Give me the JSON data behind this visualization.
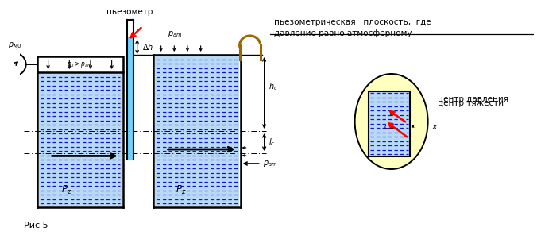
{
  "title": "Рис 5",
  "text_piezometer": "пьезометр",
  "text_piezometric_plane": "пьезометрическая   плоскость,  где",
  "text_pressure_equal": "давление равно атмосферному",
  "text_center_gravity": "центр тяжести",
  "text_center_pressure": "центр давления",
  "text_p_m0": "$p_{м0}$",
  "text_p0_patm": "$p_0{>}p_{аm}$",
  "text_delta_h": "$\\Delta h$",
  "text_p_atm_top": "$p_{аm}$",
  "text_h_c": "$h_c$",
  "text_lc": "$l_c$",
  "text_p_z_left": "$P_z$",
  "text_p_z_right": "$P_z$",
  "text_p_atm_right": "$p_{аm}$",
  "text_x": "$x$",
  "text_c": "c",
  "bg_color": "#ffffff",
  "water_bg": "#b8d8f8",
  "water_line_color": "#0000cc",
  "tank_lw": 1.8
}
